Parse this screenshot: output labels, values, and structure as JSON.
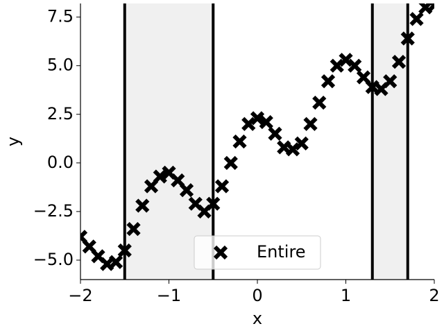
{
  "chart_data": {
    "type": "scatter",
    "xlabel": "x",
    "ylabel": "y",
    "x": [
      -2.0,
      -1.9,
      -1.8,
      -1.7,
      -1.6,
      -1.5,
      -1.4,
      -1.3,
      -1.2,
      -1.1,
      -1.0,
      -0.9,
      -0.8,
      -0.7,
      -0.6,
      -0.5,
      -0.4,
      -0.3,
      -0.2,
      -0.1,
      0.0,
      0.1,
      0.2,
      0.3,
      0.4,
      0.5,
      0.6,
      0.7,
      0.8,
      0.9,
      1.0,
      1.1,
      1.2,
      1.3,
      1.4,
      1.5,
      1.6,
      1.7,
      1.8,
      1.9,
      2.0
    ],
    "series": [
      {
        "name": "Entire",
        "color": "#000000",
        "values": [
          -3.8,
          -4.3,
          -4.8,
          -5.2,
          -5.1,
          -4.5,
          -3.4,
          -2.2,
          -1.2,
          -0.7,
          -0.5,
          -0.9,
          -1.4,
          -2.1,
          -2.5,
          -2.1,
          -1.2,
          0.0,
          1.1,
          2.0,
          2.3,
          2.1,
          1.5,
          0.8,
          0.7,
          1.0,
          2.0,
          3.1,
          4.2,
          5.0,
          5.3,
          5.0,
          4.4,
          3.9,
          3.8,
          4.2,
          5.2,
          6.4,
          7.4,
          8.0,
          8.1
        ]
      }
    ],
    "regions": [
      [
        -1.5,
        -0.5
      ],
      [
        1.3,
        1.7
      ]
    ],
    "region_color": "#f0f0f0",
    "xlim": [
      -2,
      2
    ],
    "ylim": [
      -6,
      8.2
    ],
    "xticks": [
      {
        "value": -2,
        "label": "−2"
      },
      {
        "value": -1,
        "label": "−1"
      },
      0,
      1,
      2
    ],
    "yticks": [
      {
        "value": -5,
        "label": "−5.0"
      },
      {
        "value": -2.5,
        "label": "−2.5"
      },
      {
        "value": 0,
        "label": "0.0"
      },
      {
        "value": 2.5,
        "label": "2.5"
      },
      {
        "value": 5,
        "label": "5.0"
      },
      {
        "value": 7.5,
        "label": "7.5"
      }
    ],
    "legend": "lower center"
  }
}
